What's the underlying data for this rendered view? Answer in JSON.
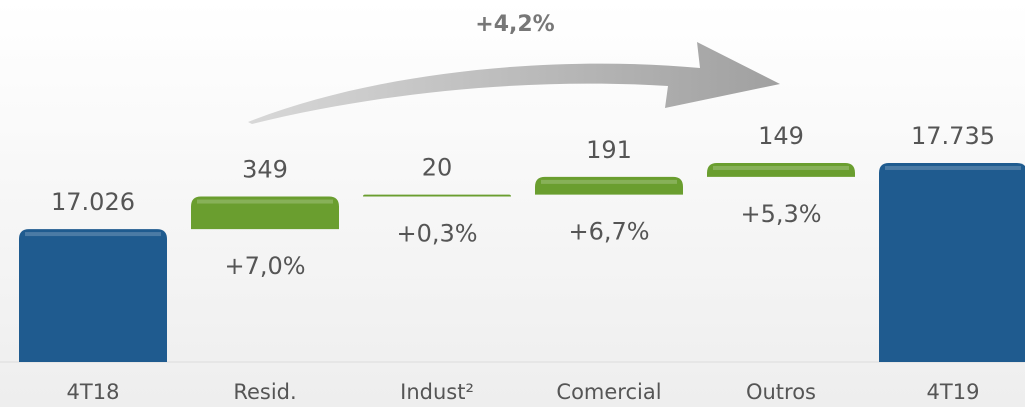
{
  "chart_data": {
    "type": "waterfall",
    "annotation": "+4,2%",
    "categories": [
      "4T18",
      "Resid.",
      "Indust²",
      "Comercial",
      "Outros",
      "4T19"
    ],
    "values": [
      17026,
      349,
      20,
      191,
      149,
      17735
    ],
    "value_labels": [
      "17.026",
      "349",
      "20",
      "191",
      "149",
      "17.735"
    ],
    "change_labels": [
      null,
      "+7,0%",
      "+0,3%",
      "+6,7%",
      "+5,3%",
      null
    ],
    "kinds": [
      "total",
      "increase",
      "increase",
      "increase",
      "increase",
      "total"
    ],
    "total_color": "#1f5b8f",
    "increase_color": "#6a9e2f",
    "ylim": [
      15600,
      17900
    ]
  }
}
